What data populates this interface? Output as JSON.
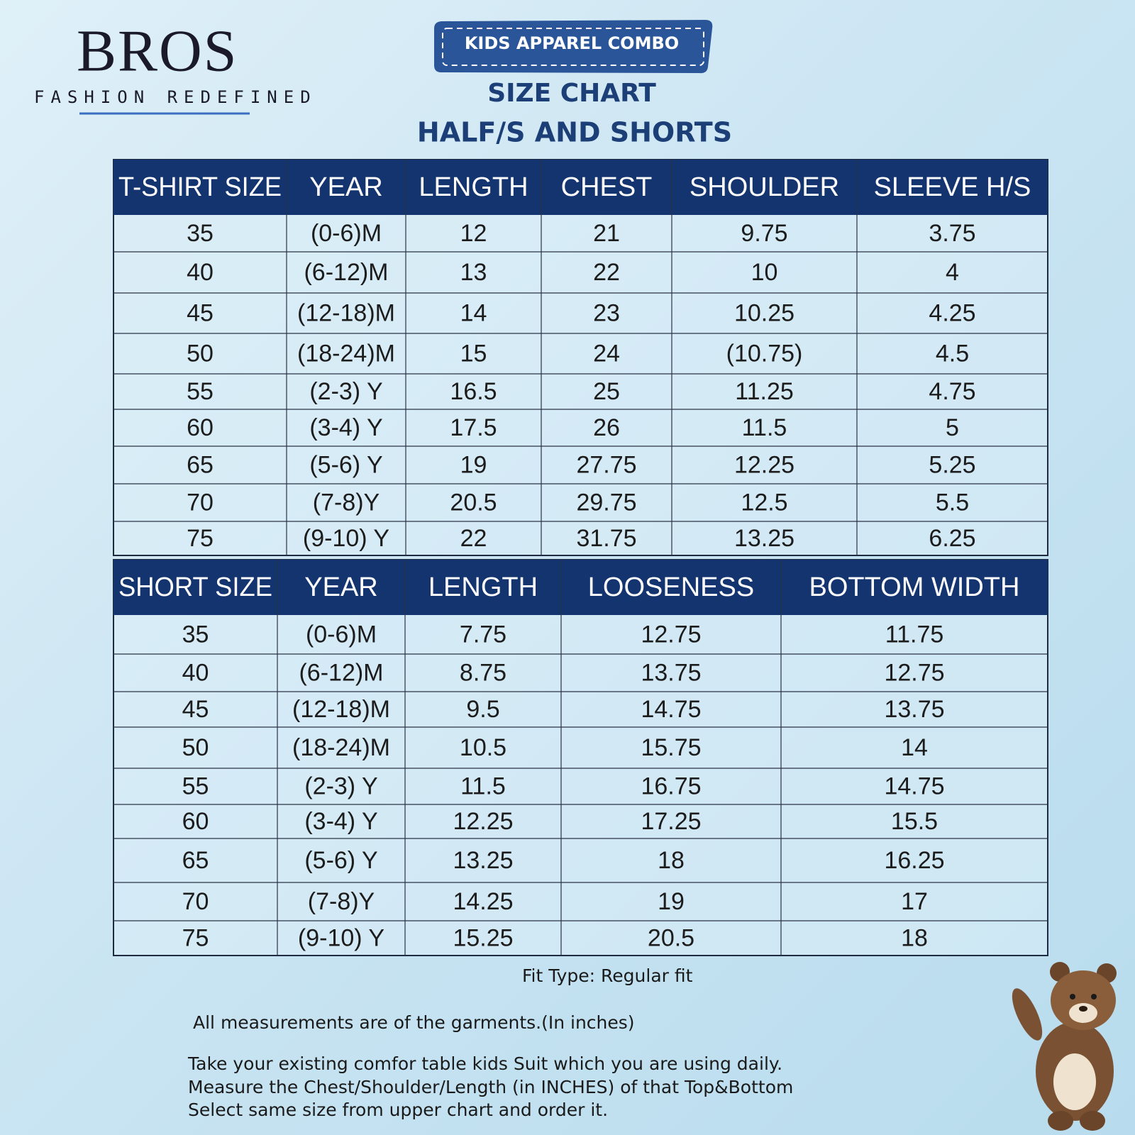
{
  "logo": {
    "brand": "BROS",
    "tagline": "FASHION REDEFINED"
  },
  "badge": "KIDS APPAREL COMBO",
  "title": "SIZE CHART",
  "subtitle": "HALF/S  AND SHORTS",
  "tshirt_table": {
    "headers": [
      "T-SHIRT SIZE",
      "YEAR",
      "LENGTH",
      "CHEST",
      "SHOULDER",
      "SLEEVE H/S"
    ],
    "rows": [
      [
        "35",
        "(0-6)M",
        "12",
        "21",
        "9.75",
        "3.75"
      ],
      [
        "40",
        "(6-12)M",
        "13",
        "22",
        "10",
        "4"
      ],
      [
        "45",
        "(12-18)M",
        "14",
        "23",
        "10.25",
        "4.25"
      ],
      [
        "50",
        "(18-24)M",
        "15",
        "24",
        "(10.75)",
        "4.5"
      ],
      [
        "55",
        "(2-3) Y",
        "16.5",
        "25",
        "11.25",
        "4.75"
      ],
      [
        "60",
        "(3-4) Y",
        "17.5",
        "26",
        "11.5",
        "5"
      ],
      [
        "65",
        "(5-6) Y",
        "19",
        "27.75",
        "12.25",
        "5.25"
      ],
      [
        "70",
        "(7-8)Y",
        "20.5",
        "29.75",
        "12.5",
        "5.5"
      ],
      [
        "75",
        "(9-10) Y",
        "22",
        "31.75",
        "13.25",
        "6.25"
      ]
    ]
  },
  "shorts_table": {
    "headers": [
      "SHORT SIZE",
      "YEAR",
      "LENGTH",
      "LOOSENESS",
      "BOTTOM WIDTH"
    ],
    "rows": [
      [
        "35",
        "(0-6)M",
        "7.75",
        "12.75",
        "11.75"
      ],
      [
        "40",
        "(6-12)M",
        "8.75",
        "13.75",
        "12.75"
      ],
      [
        "45",
        "(12-18)M",
        "9.5",
        "14.75",
        "13.75"
      ],
      [
        "50",
        "(18-24)M",
        "10.5",
        "15.75",
        "14"
      ],
      [
        "55",
        "(2-3) Y",
        "11.5",
        "16.75",
        "14.75"
      ],
      [
        "60",
        "(3-4) Y",
        "12.25",
        "17.25",
        "15.5"
      ],
      [
        "65",
        "(5-6) Y",
        "13.25",
        "18",
        "16.25"
      ],
      [
        "70",
        "(7-8)Y",
        "14.25",
        "19",
        "17"
      ],
      [
        "75",
        "(9-10) Y",
        "15.25",
        "20.5",
        "18"
      ]
    ]
  },
  "notes": {
    "fit": "Fit Type: Regular fit",
    "measurement": "All measurements are of the garments.(In inches)",
    "instructions": [
      "Take your existing comfor table kids Suit which you are using daily.",
      "Measure the Chest/Shoulder/Length (in INCHES) of that Top&Bottom",
      "Select same size from upper chart and order it."
    ]
  }
}
